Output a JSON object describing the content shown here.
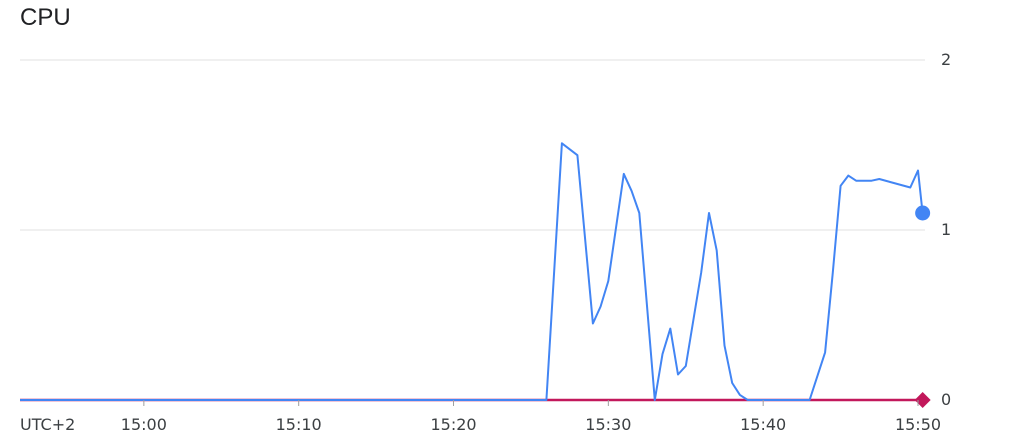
{
  "chart_data": {
    "type": "line",
    "title": "CPU",
    "timezone_label": "UTC+2",
    "x_tick_labels": [
      "15:00",
      "15:10",
      "15:20",
      "15:30",
      "15:40",
      "15:50"
    ],
    "xlim_minutes": [
      "14:52",
      "15:50"
    ],
    "y_tick_labels": [
      "2",
      "1",
      "0"
    ],
    "ylim": [
      0,
      2
    ],
    "grid": true,
    "series": [
      {
        "color": "#4285f4",
        "x": [
          "14:52",
          "15:26",
          "15:27",
          "15:28",
          "15:29",
          "15:29.5",
          "15:30",
          "15:31",
          "15:31.5",
          "15:32",
          "15:33",
          "15:33.5",
          "15:34",
          "15:34.5",
          "15:35",
          "15:36",
          "15:36.5",
          "15:37",
          "15:37.5",
          "15:38",
          "15:38.5",
          "15:39",
          "15:40",
          "15:43",
          "15:44",
          "15:44.5",
          "15:45",
          "15:45.5",
          "15:46",
          "15:47",
          "15:47.5",
          "15:49.5",
          "15:50",
          "15:50.3"
        ],
        "y": [
          0,
          0,
          1.51,
          1.44,
          0.45,
          0.55,
          0.7,
          1.33,
          1.23,
          1.1,
          0,
          0.27,
          0.42,
          0.15,
          0.2,
          0.75,
          1.1,
          0.88,
          0.32,
          0.1,
          0.03,
          0,
          0,
          0,
          0.28,
          0.75,
          1.26,
          1.32,
          1.29,
          1.29,
          1.3,
          1.25,
          1.35,
          1.1
        ]
      },
      {
        "color": "#c2185b",
        "x": [
          "14:52",
          "15:50.3"
        ],
        "y": [
          0,
          0
        ]
      }
    ]
  }
}
